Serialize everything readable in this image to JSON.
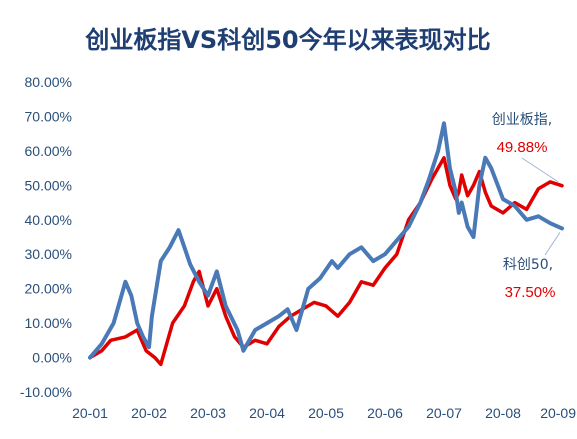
{
  "chart_data": {
    "type": "line",
    "title": "创业板指VS科创50今年以来表现对比",
    "xlabel": "",
    "ylabel": "",
    "ylim": [
      -10,
      80
    ],
    "yticks": [
      "80.00%",
      "70.00%",
      "60.00%",
      "50.00%",
      "40.00%",
      "30.00%",
      "20.00%",
      "10.00%",
      "0.00%",
      "-10.00%"
    ],
    "categories": [
      "20-01",
      "20-02",
      "20-03",
      "20-04",
      "20-05",
      "20-06",
      "20-07",
      "20-08",
      "20-09"
    ],
    "legend": "none",
    "grid": false,
    "annotations": [
      {
        "name": "创业板指,",
        "value": "49.88%"
      },
      {
        "name": "科创50,",
        "value": "37.50%"
      }
    ],
    "series": [
      {
        "color": "#e00000",
        "x": [
          0,
          0.2,
          0.35,
          0.6,
          0.8,
          0.95,
          1.1,
          1.2,
          1.4,
          1.6,
          1.75,
          1.85,
          2.0,
          2.15,
          2.3,
          2.45,
          2.6,
          2.8,
          3.0,
          3.2,
          3.4,
          3.6,
          3.8,
          4.0,
          4.2,
          4.4,
          4.6,
          4.8,
          5.0,
          5.2,
          5.4,
          5.6,
          5.8,
          6.0,
          6.1,
          6.2,
          6.25,
          6.3,
          6.4,
          6.5,
          6.6,
          6.7,
          6.8,
          7.0,
          7.2,
          7.4,
          7.6,
          7.8,
          8.0
        ],
        "values": [
          0,
          2,
          5,
          6,
          8,
          2,
          0,
          -2,
          10,
          15,
          22,
          25,
          15,
          20,
          12,
          6,
          3,
          5,
          4,
          9,
          12,
          14,
          16,
          15,
          12,
          16,
          22,
          21,
          26,
          30,
          40,
          45,
          52,
          58,
          50,
          46,
          48,
          53,
          47,
          50,
          54,
          48,
          44,
          42,
          45,
          43,
          49,
          51,
          49.88
        ]
      },
      {
        "color": "#4a79b8",
        "x": [
          0,
          0.2,
          0.4,
          0.6,
          0.7,
          0.8,
          0.9,
          1.0,
          1.05,
          1.2,
          1.35,
          1.5,
          1.6,
          1.7,
          1.85,
          2.0,
          2.15,
          2.3,
          2.5,
          2.6,
          2.8,
          3.0,
          3.2,
          3.35,
          3.5,
          3.7,
          3.9,
          4.1,
          4.2,
          4.4,
          4.6,
          4.8,
          5.0,
          5.2,
          5.4,
          5.6,
          5.75,
          5.9,
          6.0,
          6.1,
          6.2,
          6.25,
          6.3,
          6.4,
          6.5,
          6.6,
          6.7,
          6.8,
          7.0,
          7.2,
          7.4,
          7.6,
          7.8,
          8.0
        ],
        "values": [
          0,
          4,
          10,
          22,
          18,
          10,
          6,
          3,
          12,
          28,
          32,
          37,
          32,
          27,
          22,
          18,
          25,
          15,
          8,
          2,
          8,
          10,
          12,
          14,
          8,
          20,
          23,
          28,
          26,
          30,
          32,
          28,
          30,
          34,
          38,
          45,
          52,
          60,
          68,
          55,
          48,
          42,
          45,
          38,
          35,
          50,
          58,
          55,
          46,
          44,
          40,
          41,
          39,
          37.5
        ]
      }
    ]
  }
}
